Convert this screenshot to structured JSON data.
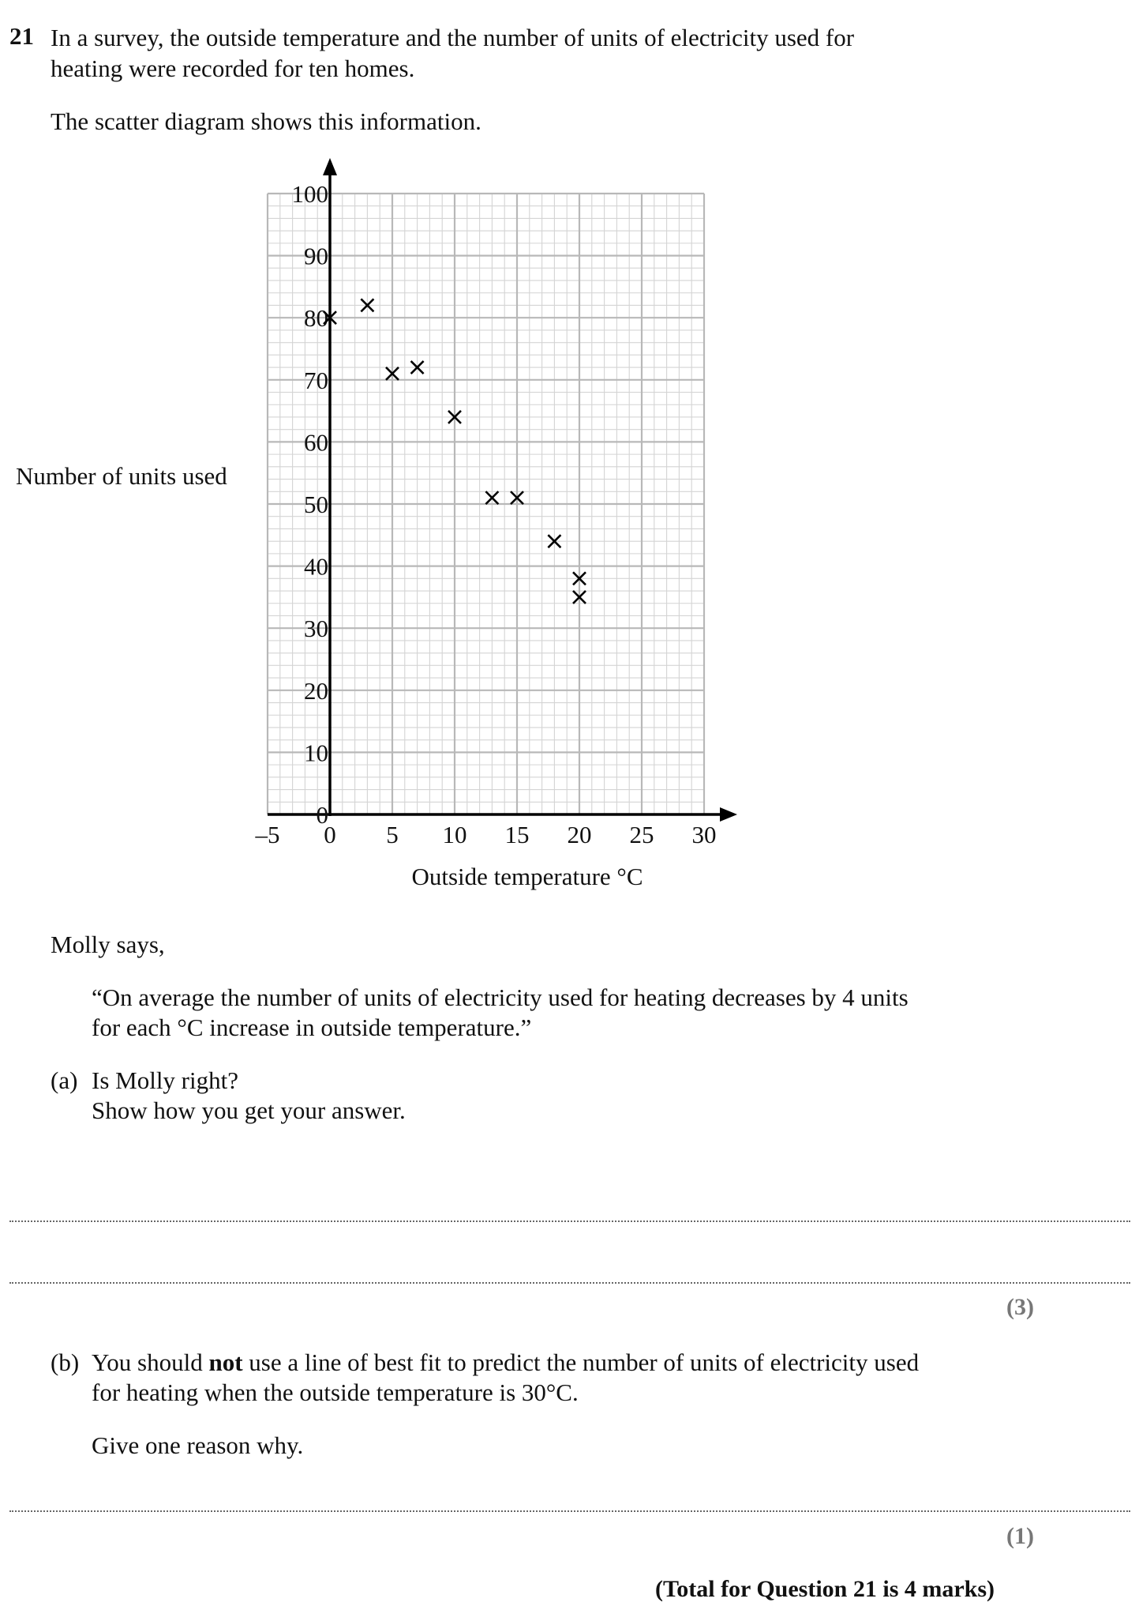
{
  "question": {
    "number": "21",
    "intro_line1": "In a survey, the outside temperature and the number of units of electricity used for",
    "intro_line2": "heating were recorded for ten homes.",
    "diagram_intro": "The scatter diagram shows this information."
  },
  "chart_data": {
    "type": "scatter",
    "title": "",
    "xlabel": "Outside temperature °C",
    "ylabel": "Number of units used",
    "xlim": [
      -5,
      30
    ],
    "ylim": [
      0,
      100
    ],
    "x_ticks": [
      "–5",
      "0",
      "5",
      "10",
      "15",
      "20",
      "25",
      "30"
    ],
    "y_ticks": [
      "0",
      "10",
      "20",
      "30",
      "40",
      "50",
      "60",
      "70",
      "80",
      "90",
      "100"
    ],
    "grid": true,
    "marker": "cross",
    "series": [
      {
        "points": [
          {
            "x": 0,
            "y": 80
          },
          {
            "x": 3,
            "y": 82
          },
          {
            "x": 5,
            "y": 71
          },
          {
            "x": 7,
            "y": 72
          },
          {
            "x": 10,
            "y": 64
          },
          {
            "x": 13,
            "y": 51
          },
          {
            "x": 15,
            "y": 51
          },
          {
            "x": 18,
            "y": 44
          },
          {
            "x": 20,
            "y": 38
          },
          {
            "x": 20,
            "y": 35
          }
        ]
      }
    ]
  },
  "molly": {
    "says": "Molly says,",
    "quote_line1": "“On average the number of units of electricity used for heating decreases by 4 units",
    "quote_line2": "for each °C increase in outside temperature.”"
  },
  "part_a": {
    "label": "(a)",
    "line1": "Is Molly right?",
    "line2": "Show how you get your answer.",
    "marks": "(3)"
  },
  "part_b": {
    "label": "(b)",
    "line1_pre": "You should ",
    "line1_bold": "not",
    "line1_post": " use a line of best fit to predict the number of units of electricity used",
    "line2": "for heating when the outside temperature is 30°C.",
    "line3": "Give one reason why.",
    "marks": "(1)"
  },
  "total": "(Total for Question 21 is 4 marks)"
}
